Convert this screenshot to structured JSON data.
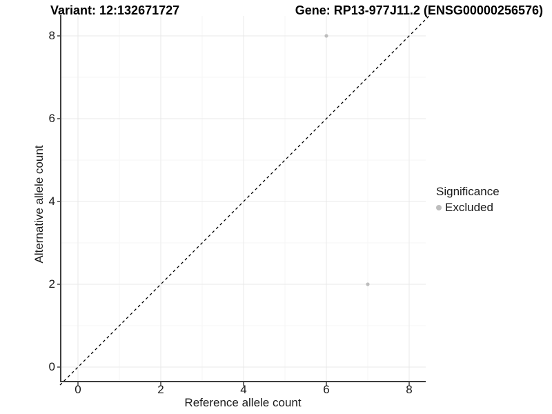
{
  "header": {
    "variant_title": "Variant: 12:132671727",
    "gene_title": "Gene: RP13-977J11.2 (ENSG00000256576)"
  },
  "chart_data": {
    "type": "scatter",
    "title_left": "Variant: 12:132671727",
    "title_right": "Gene: RP13-977J11.2 (ENSG00000256576)",
    "xlabel": "Reference allele count",
    "ylabel": "Alternative allele count",
    "xticks": [
      0,
      2,
      4,
      6,
      8
    ],
    "yticks": [
      0,
      2,
      4,
      6,
      8
    ],
    "minor_xticks": [
      1,
      3,
      5,
      7
    ],
    "minor_yticks": [
      1,
      3,
      5,
      7
    ],
    "xlim": [
      -0.43,
      8.4
    ],
    "ylim": [
      -0.43,
      8.4
    ],
    "grid": "major-and-minor",
    "points": [
      {
        "x": 6,
        "y": 8,
        "significance": "Excluded"
      },
      {
        "x": 7,
        "y": 2,
        "significance": "Excluded"
      }
    ],
    "point_color": "#bdbdbd",
    "point_radius_px": 2.6,
    "reference_line": {
      "type": "identity-diagonal",
      "style": "dashed",
      "color": "#000000"
    },
    "legend": {
      "title": "Significance",
      "position": "right",
      "entries": [
        {
          "label": "Excluded",
          "color": "#bdbdbd",
          "marker": "circle"
        }
      ]
    }
  },
  "style": {
    "axis_color": "#3d3d3d",
    "grid_major_color": "#e9e9e9",
    "grid_minor_color": "#f5f5f5",
    "text_color": "#1a1a1a",
    "background_color": "#ffffff"
  }
}
